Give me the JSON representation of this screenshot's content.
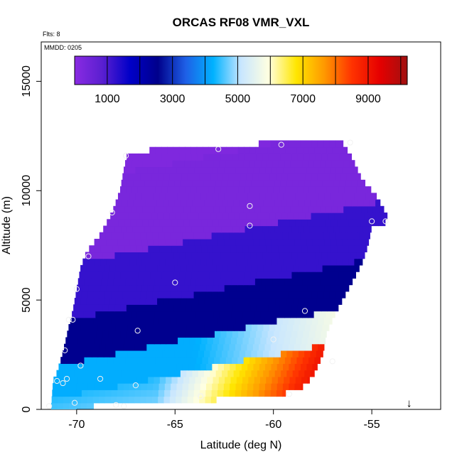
{
  "chart_data": {
    "type": "heatmap",
    "title": "ORCAS RF08 VMR_VXL",
    "flights_note": "Flts: 8",
    "date_note": "MMDD: 0205",
    "xlabel": "Latitude (deg N)",
    "ylabel": "Altitude (m)",
    "xlim": [
      -71.8,
      -51.5
    ],
    "ylim": [
      0,
      16800
    ],
    "x_ticks": [
      -70,
      -65,
      -60,
      -55
    ],
    "x_tick_labels": [
      "-70",
      "-65",
      "-60",
      "-55"
    ],
    "y_ticks": [
      0,
      5000,
      10000,
      15000
    ],
    "y_tick_labels": [
      "0",
      "5000",
      "10000",
      "15000"
    ],
    "colorbar": {
      "range": [
        0,
        10200
      ],
      "ticks": [
        1000,
        3000,
        5000,
        7000,
        9000
      ],
      "tick_labels": [
        "1000",
        "3000",
        "5000",
        "7000",
        "9000"
      ],
      "boundaries": [
        1000,
        2000,
        3000,
        4000,
        5000,
        6000,
        7000,
        8000,
        9000,
        10000
      ],
      "colors": [
        "#8a2be2",
        "#5a1fd0",
        "#0000c8",
        "#00008b",
        "#1e5fe6",
        "#00b2ff",
        "#c8e6ff",
        "#ffffe0",
        "#ffe600",
        "#ff9900",
        "#ff3300",
        "#e60000",
        "#a01010"
      ]
    },
    "envelope": {
      "left_edge": [
        [
          -71.2,
          1300
        ],
        [
          -71.0,
          1700
        ],
        [
          -70.8,
          2300
        ],
        [
          -70.6,
          3000
        ],
        [
          -70.4,
          3800
        ],
        [
          -70.2,
          4500
        ],
        [
          -70.0,
          5500
        ],
        [
          -69.8,
          6500
        ],
        [
          -69.5,
          7200
        ],
        [
          -68.8,
          8000
        ],
        [
          -68.2,
          9000
        ],
        [
          -67.8,
          10000
        ],
        [
          -67.6,
          11000
        ],
        [
          -67.4,
          11800
        ]
      ],
      "top_edge": [
        [
          -67.4,
          11800
        ],
        [
          -63.0,
          12000
        ],
        [
          -60.0,
          12200
        ],
        [
          -56.5,
          12200
        ]
      ],
      "right_edge": [
        [
          -56.5,
          12200
        ],
        [
          -56.0,
          11500
        ],
        [
          -55.5,
          10500
        ],
        [
          -54.8,
          9800
        ],
        [
          -54.3,
          9000
        ],
        [
          -54.1,
          8600
        ],
        [
          -55.0,
          8400
        ],
        [
          -55.2,
          7500
        ],
        [
          -55.5,
          6700
        ],
        [
          -56.2,
          5500
        ],
        [
          -56.8,
          4500
        ],
        [
          -57.3,
          3500
        ],
        [
          -57.5,
          2500
        ],
        [
          -58.0,
          1500
        ],
        [
          -58.8,
          800
        ]
      ],
      "bottom_edge": [
        [
          -58.8,
          800
        ],
        [
          -63.5,
          400
        ],
        [
          -67.0,
          200
        ],
        [
          -71.3,
          100
        ],
        [
          -71.2,
          1300
        ]
      ]
    },
    "color_bands": [
      {
        "altitude_min": 8500,
        "altitude_max": 12200,
        "value": 300
      },
      {
        "altitude_min": 6000,
        "altitude_max": 8500,
        "value": 1200
      },
      {
        "altitude_min": 4000,
        "altitude_max": 6000,
        "value": 2500
      },
      {
        "altitude_min": 2500,
        "altitude_max": 4000,
        "value": 4500
      },
      {
        "altitude_min": 0,
        "altitude_max": 2500,
        "value": 7000
      }
    ],
    "sample_points": [
      [
        -67.5,
        11600
      ],
      [
        -62.8,
        11900
      ],
      [
        -59.6,
        12100
      ],
      [
        -56.1,
        12200
      ],
      [
        -68.2,
        9000
      ],
      [
        -61.2,
        9300
      ],
      [
        -61.2,
        8400
      ],
      [
        -55.0,
        8600
      ],
      [
        -54.3,
        8600
      ],
      [
        -69.4,
        7000
      ],
      [
        -65.0,
        5800
      ],
      [
        -70.0,
        5500
      ],
      [
        -70.4,
        4100
      ],
      [
        -70.2,
        4100
      ],
      [
        -66.9,
        3600
      ],
      [
        -58.4,
        4500
      ],
      [
        -60.0,
        3200
      ],
      [
        -70.6,
        2700
      ],
      [
        -69.8,
        2000
      ],
      [
        -57.0,
        2200
      ],
      [
        -70.5,
        1400
      ],
      [
        -71.0,
        1300
      ],
      [
        -70.7,
        1200
      ],
      [
        -68.8,
        1400
      ],
      [
        -67.0,
        1100
      ],
      [
        -63.7,
        600
      ],
      [
        -59.2,
        700
      ],
      [
        -70.1,
        300
      ],
      [
        -68.0,
        200
      ],
      [
        -67.6,
        150
      ],
      [
        -71.4,
        150
      ]
    ],
    "end_marker": {
      "latitude": -53.1,
      "altitude": 700,
      "symbol": "↓"
    }
  }
}
